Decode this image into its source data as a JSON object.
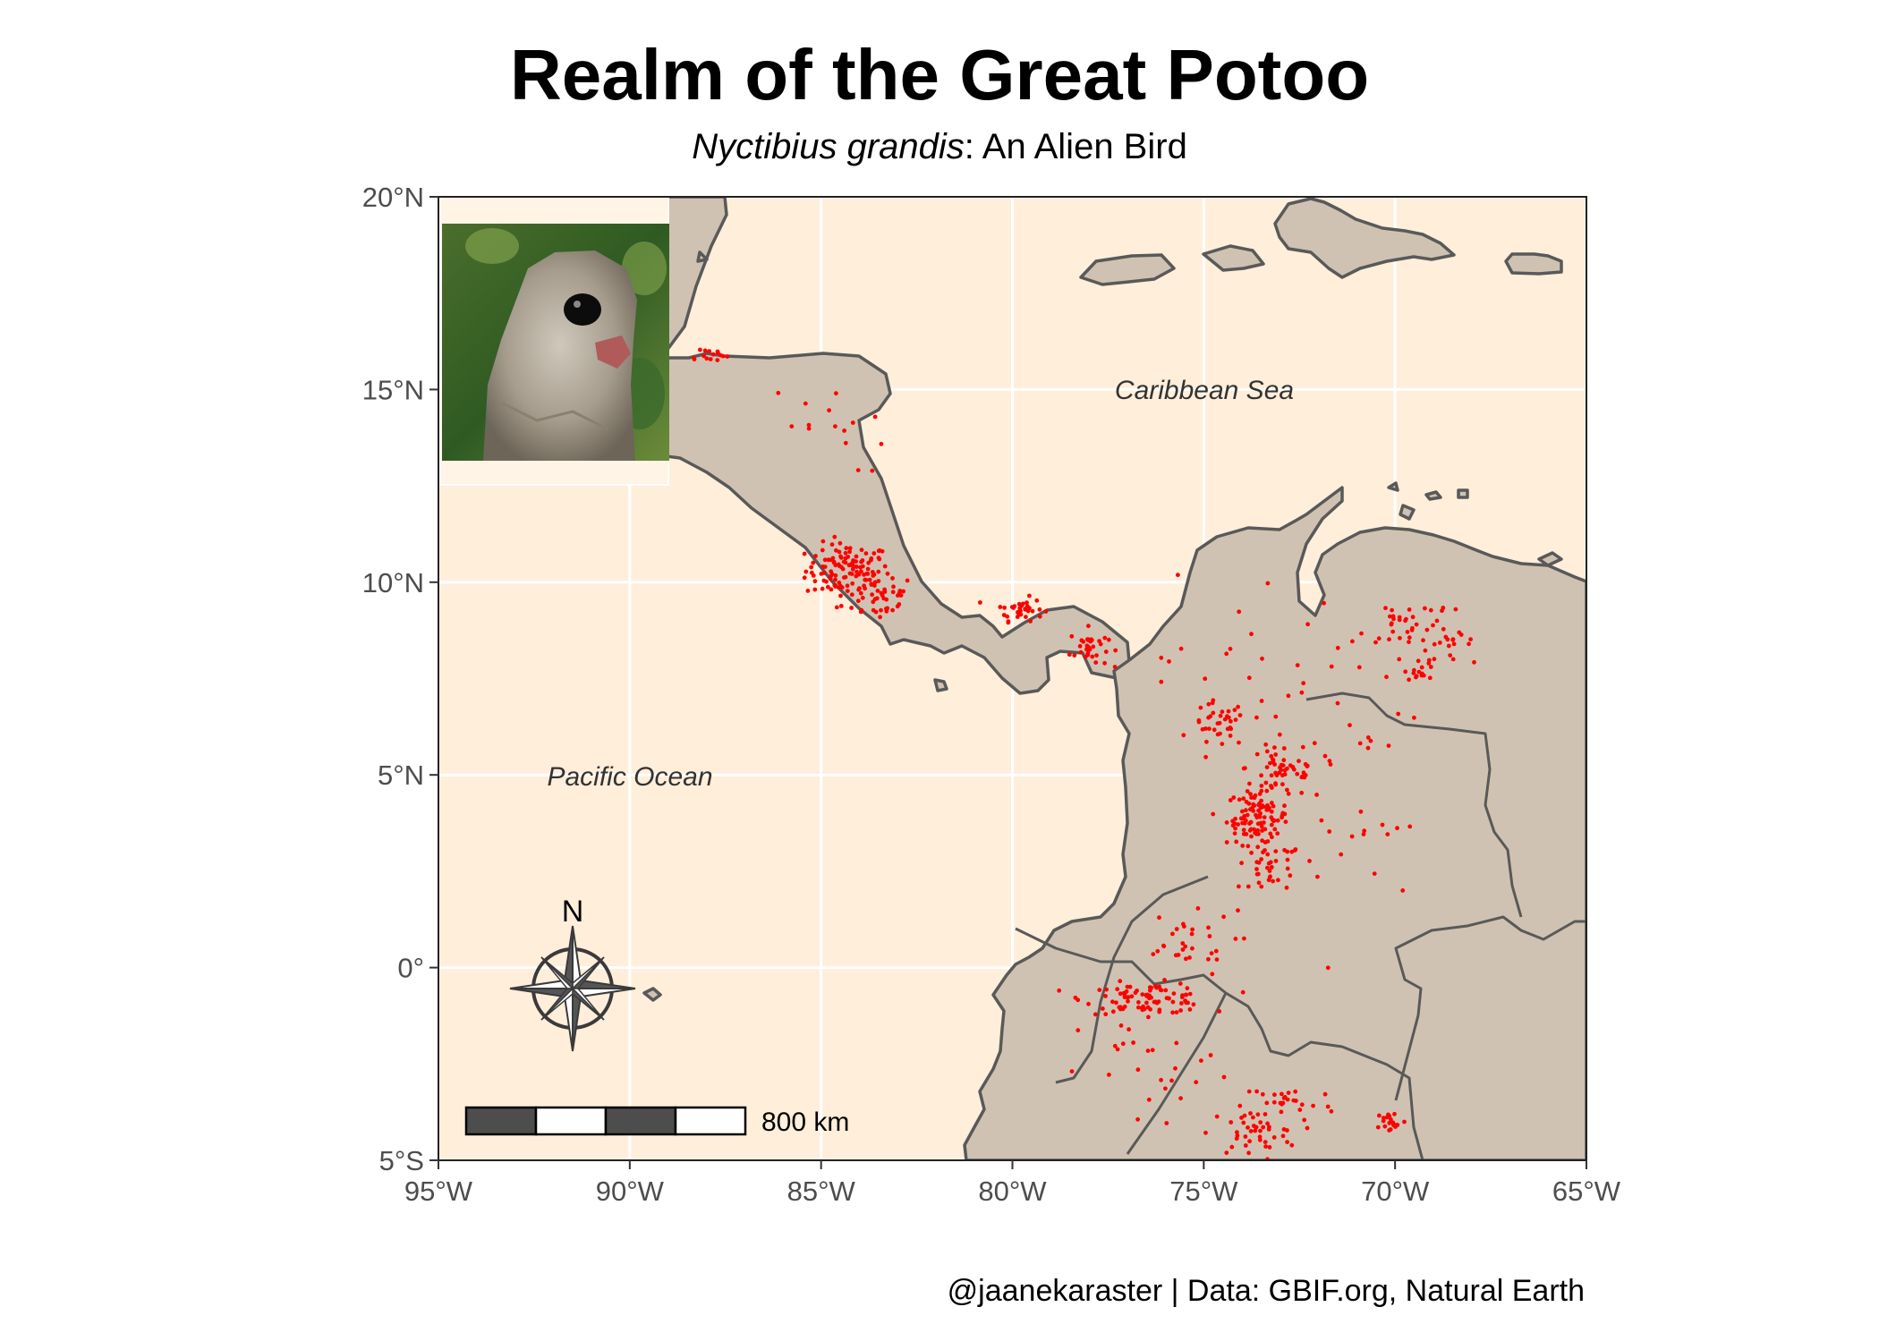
{
  "title": "Realm of the Great Potoo",
  "subtitle": {
    "species": "Nyctibius grandis",
    "rest": ": An Alien Bird"
  },
  "caption": "@jaanekaraster | Data: GBIF.org, Natural Earth",
  "map": {
    "lon_range": [
      -95,
      -65
    ],
    "lat_range": [
      -5,
      20
    ],
    "graticule": true,
    "x_ticks": [
      {
        "value": -95,
        "label": "95°W"
      },
      {
        "value": -90,
        "label": "90°W"
      },
      {
        "value": -85,
        "label": "85°W"
      },
      {
        "value": -80,
        "label": "80°W"
      },
      {
        "value": -75,
        "label": "75°W"
      },
      {
        "value": -70,
        "label": "70°W"
      },
      {
        "value": -65,
        "label": "65°W"
      }
    ],
    "y_ticks": [
      {
        "value": 20,
        "label": "20°N"
      },
      {
        "value": 15,
        "label": "15°N"
      },
      {
        "value": 10,
        "label": "10°N"
      },
      {
        "value": 5,
        "label": "5°N"
      },
      {
        "value": 0,
        "label": "0°"
      },
      {
        "value": -5,
        "label": "5°S"
      }
    ],
    "ocean_labels": [
      {
        "text": "Caribbean Sea",
        "lon": -70,
        "lat": 15
      },
      {
        "text": "Pacific Ocean",
        "lon": -90,
        "lat": 5
      }
    ],
    "compass_label": "N",
    "scale_bar_label": "800 km",
    "colors": {
      "ocean": "#FFEEDA",
      "land": "#D0C2B2",
      "coast": "#595959",
      "points": "#FF0000",
      "grid": "#FFFFFF"
    },
    "occurrence_clusters": [
      {
        "lon": -84.3,
        "lat": 10.3,
        "sd": [
          0.55,
          0.35
        ],
        "n": 120
      },
      {
        "lon": -83.5,
        "lat": 9.6,
        "sd": [
          0.5,
          0.3
        ],
        "n": 40
      },
      {
        "lon": -79.8,
        "lat": 9.3,
        "sd": [
          0.3,
          0.15
        ],
        "n": 35
      },
      {
        "lon": -78.0,
        "lat": 8.3,
        "sd": [
          0.25,
          0.25
        ],
        "n": 35
      },
      {
        "lon": -73.6,
        "lat": 3.9,
        "sd": [
          0.4,
          0.35
        ],
        "n": 110
      },
      {
        "lon": -72.9,
        "lat": 5.2,
        "sd": [
          0.5,
          0.4
        ],
        "n": 50
      },
      {
        "lon": -74.6,
        "lat": 6.3,
        "sd": [
          0.35,
          0.3
        ],
        "n": 35
      },
      {
        "lon": -73.2,
        "lat": 2.5,
        "sd": [
          0.4,
          0.4
        ],
        "n": 35
      },
      {
        "lon": -76.5,
        "lat": -0.8,
        "sd": [
          0.8,
          0.2
        ],
        "n": 90
      },
      {
        "lon": -73.7,
        "lat": -4.3,
        "sd": [
          0.6,
          0.3
        ],
        "n": 45
      },
      {
        "lon": -72.8,
        "lat": -3.5,
        "sd": [
          0.6,
          0.25
        ],
        "n": 25
      },
      {
        "lon": -70.1,
        "lat": -4.0,
        "sd": [
          0.2,
          0.15
        ],
        "n": 20
      },
      {
        "lon": -69.8,
        "lat": 9.0,
        "sd": [
          0.5,
          0.35
        ],
        "n": 25
      },
      {
        "lon": -68.7,
        "lat": 8.4,
        "sd": [
          0.5,
          0.5
        ],
        "n": 25
      },
      {
        "lon": -69.3,
        "lat": 7.8,
        "sd": [
          0.2,
          0.2
        ],
        "n": 15
      },
      {
        "lon": -89.9,
        "lat": 15.8,
        "sd": [
          0.2,
          0.15
        ],
        "n": 20
      },
      {
        "lon": -88.0,
        "lat": 15.9,
        "sd": [
          0.3,
          0.1
        ],
        "n": 15
      },
      {
        "lon": -75.6,
        "lat": 0.6,
        "sd": [
          0.7,
          0.4
        ],
        "n": 30
      },
      {
        "lon": -85.0,
        "lat": 14.0,
        "sd": [
          0.9,
          0.6
        ],
        "n": 15
      },
      {
        "lon": -73.0,
        "lat": 7.5,
        "sd": [
          1.6,
          1.4
        ],
        "n": 40
      },
      {
        "lon": -71.2,
        "lat": 4.0,
        "sd": [
          1.2,
          1.8
        ],
        "n": 25
      },
      {
        "lon": -76.2,
        "lat": -2.8,
        "sd": [
          1.0,
          0.8
        ],
        "n": 25
      }
    ]
  }
}
